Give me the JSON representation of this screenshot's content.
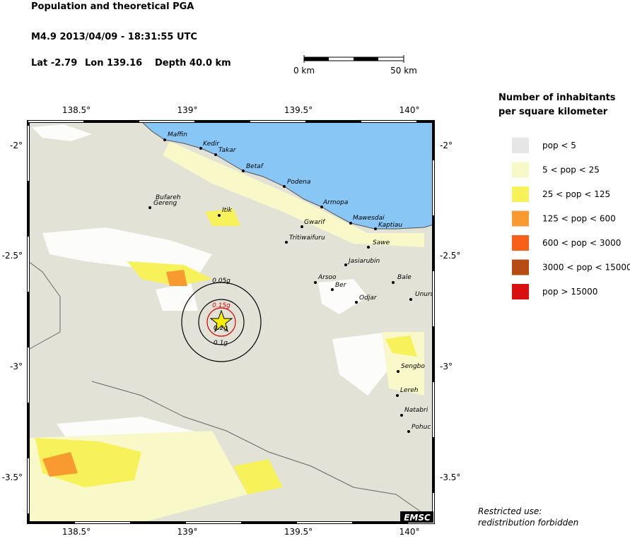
{
  "header": {
    "title": "Population and theoretical PGA",
    "event": "M4.9  2013/04/09 - 18:31:55 UTC",
    "lat": "Lat -2.79",
    "lon": "Lon 139.16",
    "depth": "Depth  40.0 km"
  },
  "scale_bar": {
    "start": "0 km",
    "end": "50 km"
  },
  "legend": {
    "title_lines": [
      "Number of inhabitants",
      "per square kilometer"
    ],
    "items": [
      {
        "label": "pop < 5",
        "color": "#e6e6e6"
      },
      {
        "label": "5 < pop < 25",
        "color": "#f8f8c8"
      },
      {
        "label": "25 < pop < 125",
        "color": "#f8f25a"
      },
      {
        "label": "125 < pop < 600",
        "color": "#f89a30"
      },
      {
        "label": "600 < pop < 3000",
        "color": "#f8601a"
      },
      {
        "label": "3000 < pop < 15000",
        "color": "#b84a14"
      },
      {
        "label": "pop > 15000",
        "color": "#d81010"
      }
    ]
  },
  "map": {
    "lon_labels": [
      "138.5°",
      "139°",
      "139.5°",
      "140°"
    ],
    "lat_labels": [
      "-2°",
      "-2.5°",
      "-3°",
      "-3.5°"
    ],
    "cities": [
      "Maffin",
      "Kedir",
      "Takar",
      "Betaf",
      "Podena",
      "Bufareh",
      "Gereng",
      "Itik",
      "Armopa",
      "Gwarif",
      "Mawesdai",
      "Kaptiau",
      "Tritiwaifuru",
      "Sawe",
      "Jasiarubin",
      "Arsoo",
      "Ber",
      "Bale",
      "Odjar",
      "Unuru",
      "Sengbo",
      "Lereh",
      "Natabri",
      "Pohuc"
    ],
    "pga_labels": [
      "0.05g",
      "0.15g",
      "0.2g",
      "0.1g"
    ],
    "credit": "EMSC"
  },
  "footer": {
    "lines": [
      "Restricted use:",
      "redistribution forbidden"
    ]
  }
}
